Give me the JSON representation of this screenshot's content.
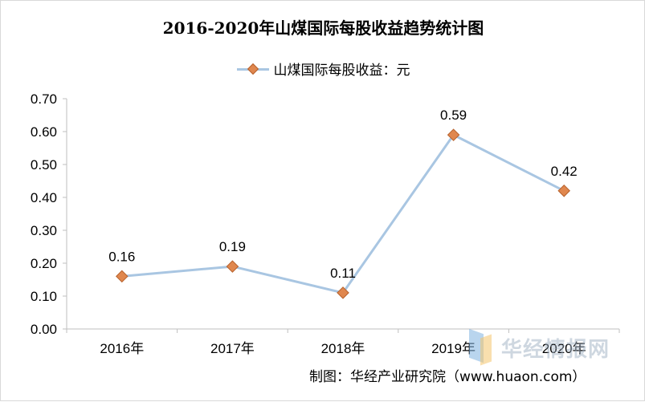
{
  "chart_data": {
    "type": "line",
    "title": "2016-2020年山煤国际每股收益趋势统计图",
    "categories": [
      "2016年",
      "2017年",
      "2018年",
      "2019年",
      "2020年"
    ],
    "series": [
      {
        "name": "山煤国际每股收益：元",
        "values": [
          0.16,
          0.19,
          0.11,
          0.59,
          0.42
        ],
        "data_labels": [
          "0.16",
          "0.19",
          "0.11",
          "0.59",
          "0.42"
        ]
      }
    ],
    "yticks": [
      "0.00",
      "0.10",
      "0.20",
      "0.30",
      "0.40",
      "0.50",
      "0.60",
      "0.70"
    ],
    "ylim": [
      0,
      0.7
    ],
    "xlabel": "",
    "ylabel": "",
    "grid": false,
    "legend_position": "top-center",
    "colors": {
      "line": "#a9c6e2",
      "marker_fill": "#e0874e",
      "marker_stroke": "#b6612c",
      "axis": "#bfbfbf"
    }
  },
  "footer": {
    "source": "制图：华经产业研究院（www.huaon.com）",
    "watermark": "华经情报网"
  }
}
